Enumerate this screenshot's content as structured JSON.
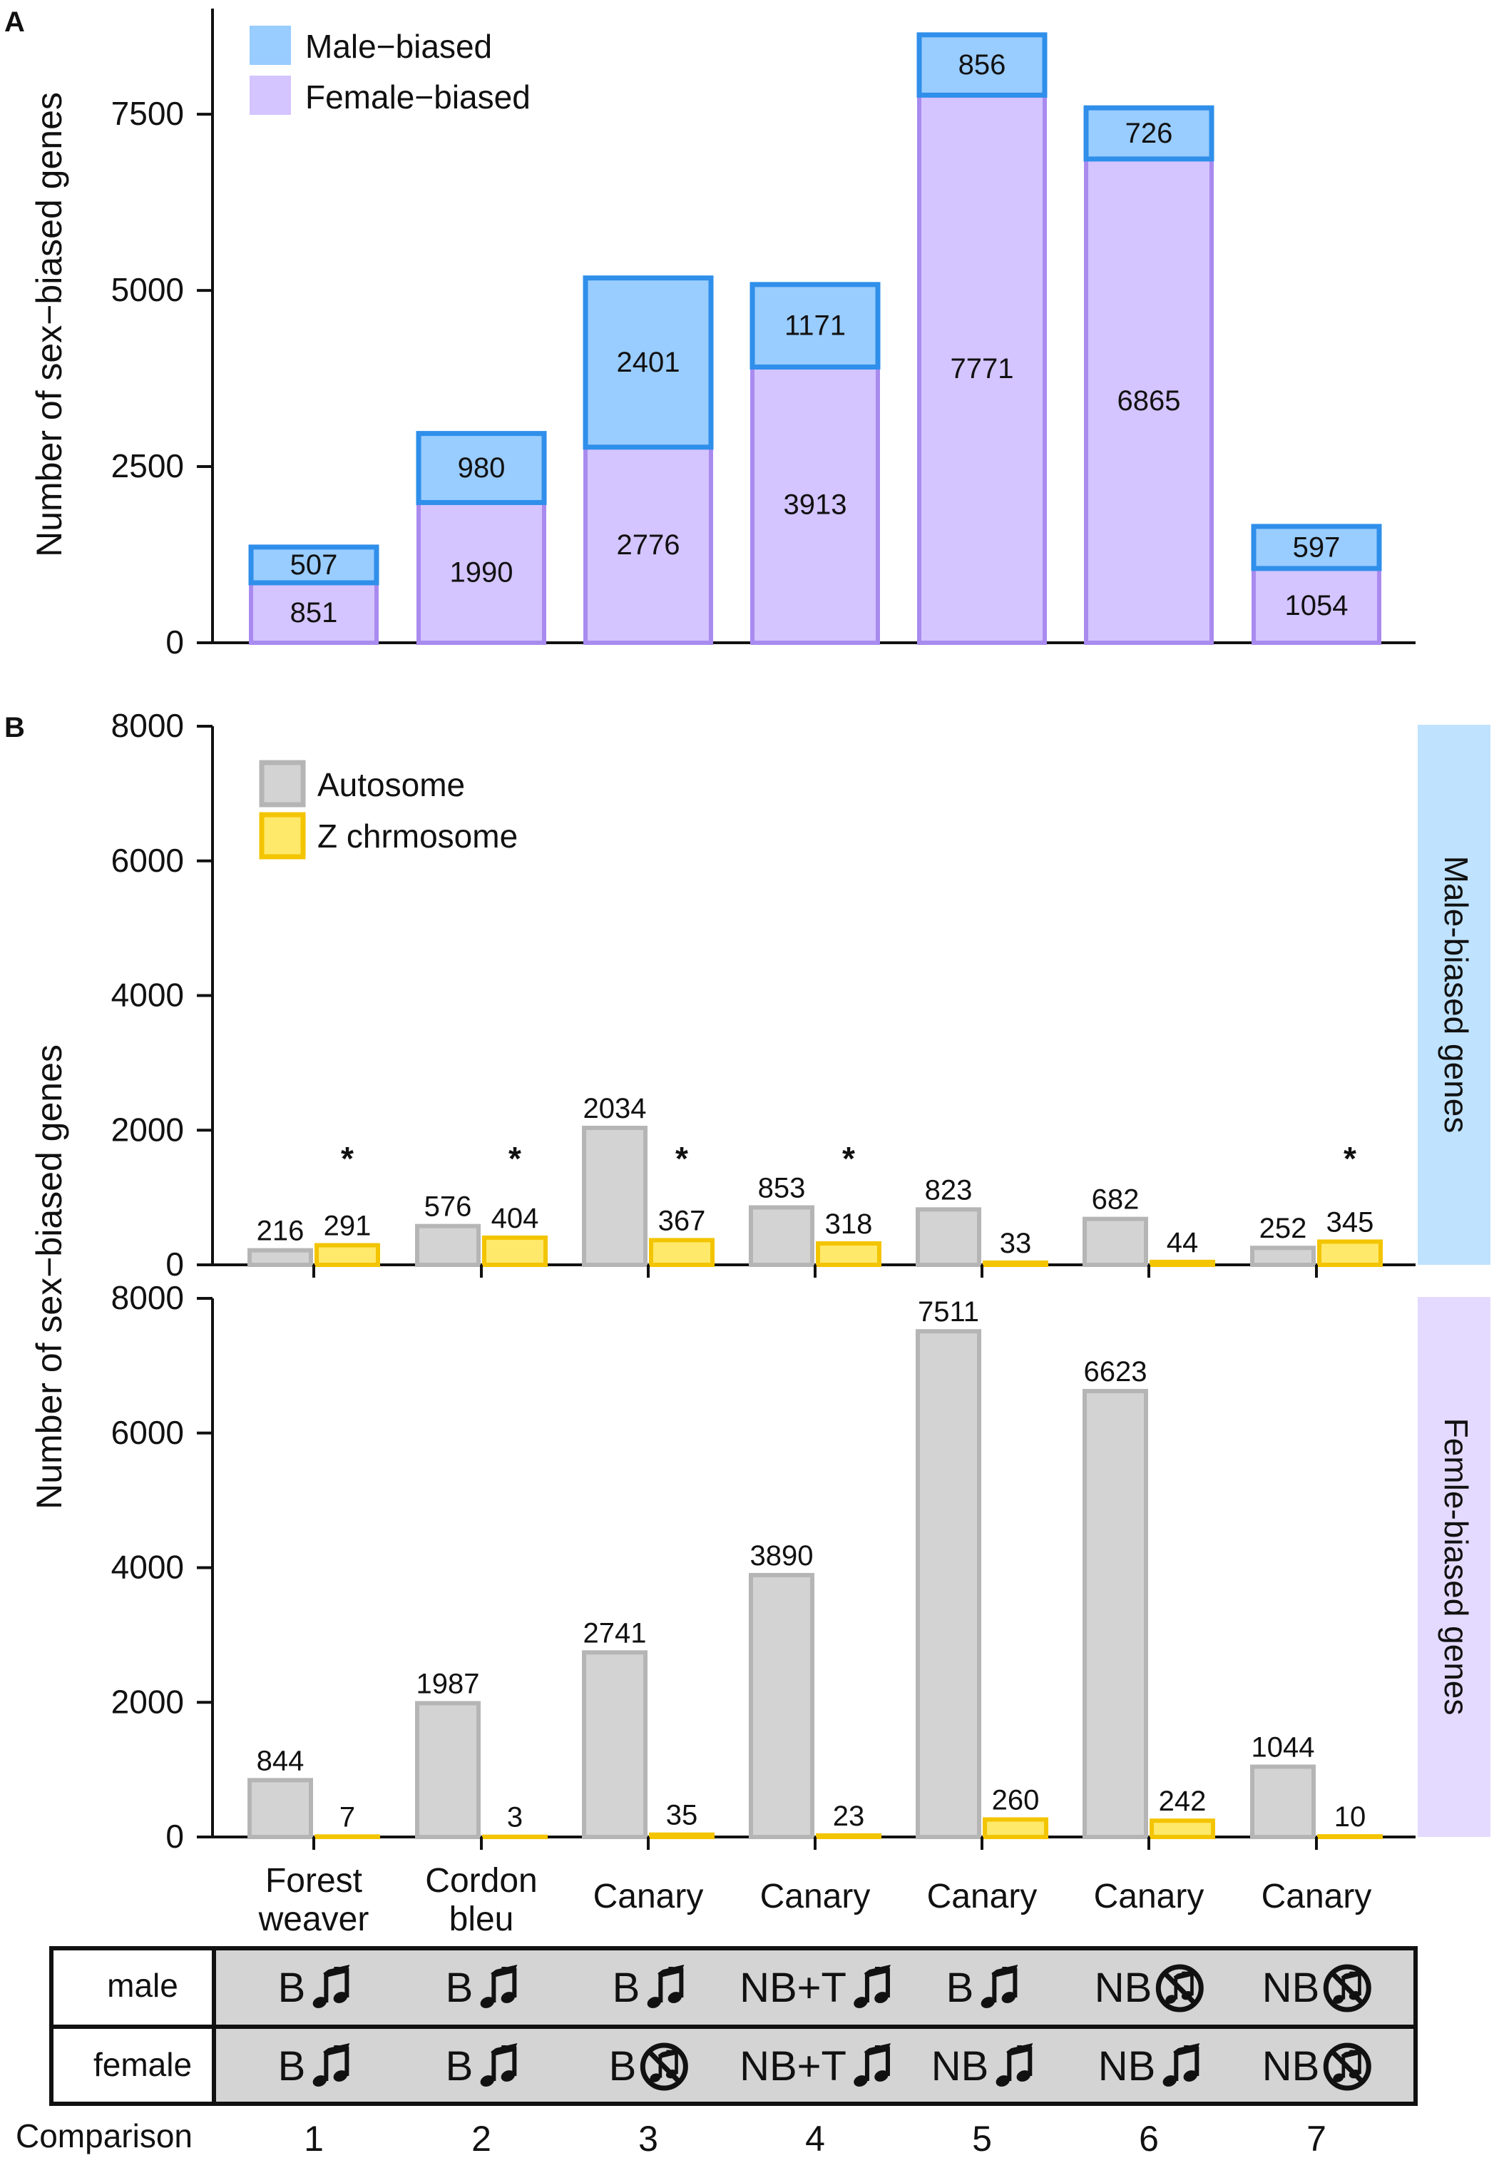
{
  "colors": {
    "male_fill": "#99CCFF",
    "male_stroke": "#2F8FEA",
    "female_fill": "#D4C4FF",
    "female_stroke": "#A98BEF",
    "auto_fill": "#D3D3D3",
    "auto_stroke": "#B5B5B5",
    "z_fill": "#FFE96A",
    "z_stroke": "#F3C400",
    "strip_male": "#BFE2FF",
    "strip_female": "#E4DAFF",
    "table_fill": "#D4D4D4"
  },
  "chart_data": [
    {
      "panel": "A",
      "type": "bar",
      "stacked": true,
      "ylabel": "Number of sex−biased genes",
      "ylim": [
        0,
        9000
      ],
      "yticks": [
        0,
        2500,
        5000,
        7500
      ],
      "categories": [
        "1",
        "2",
        "3",
        "4",
        "5",
        "6",
        "7"
      ],
      "series": [
        {
          "name": "Female−biased",
          "values": [
            851,
            1990,
            2776,
            3913,
            7771,
            6865,
            1054
          ]
        },
        {
          "name": "Male−biased",
          "values": [
            507,
            980,
            2401,
            1171,
            856,
            726,
            597
          ]
        }
      ],
      "legend": [
        "Male−biased",
        "Female−biased"
      ]
    },
    {
      "panel": "B",
      "type": "bar",
      "ylabel": "Number of sex−biased genes",
      "ylim": [
        0,
        8000
      ],
      "yticks": [
        0,
        2000,
        4000,
        6000,
        8000
      ],
      "legend": [
        "Autosome",
        "Z chrmosome"
      ],
      "categories": [
        "Forest weaver",
        "Cordon bleu",
        "Canary",
        "Canary",
        "Canary",
        "Canary",
        "Canary"
      ],
      "facets": [
        {
          "strip": "Male-biased genes",
          "series": [
            {
              "name": "Autosome",
              "values": [
                216,
                576,
                2034,
                853,
                823,
                682,
                252
              ]
            },
            {
              "name": "Z chrmosome",
              "values": [
                291,
                404,
                367,
                318,
                33,
                44,
                345
              ]
            }
          ],
          "significant": [
            true,
            true,
            true,
            true,
            false,
            false,
            true
          ]
        },
        {
          "strip": "Femle-biased genes",
          "series": [
            {
              "name": "Autosome",
              "values": [
                844,
                1987,
                2741,
                3890,
                7511,
                6623,
                1044
              ]
            },
            {
              "name": "Z chrmosome",
              "values": [
                7,
                3,
                35,
                23,
                260,
                242,
                10
              ]
            }
          ]
        }
      ]
    }
  ],
  "panel_labels": {
    "a": "A",
    "b": "B"
  },
  "species": [
    {
      "line1": "Forest",
      "line2": "weaver"
    },
    {
      "line1": "Cordon",
      "line2": "bleu"
    },
    {
      "line1": "Canary"
    },
    {
      "line1": "Canary"
    },
    {
      "line1": "Canary"
    },
    {
      "line1": "Canary"
    },
    {
      "line1": "Canary"
    }
  ],
  "significance_mark": "*",
  "table": {
    "row_labels": [
      "male",
      "female"
    ],
    "male": [
      {
        "label": "B",
        "song": true
      },
      {
        "label": "B",
        "song": true
      },
      {
        "label": "B",
        "song": true
      },
      {
        "label": "NB+T",
        "song": true
      },
      {
        "label": "B",
        "song": true
      },
      {
        "label": "NB",
        "song": false
      },
      {
        "label": "NB",
        "song": false
      }
    ],
    "female": [
      {
        "label": "B",
        "song": true
      },
      {
        "label": "B",
        "song": true
      },
      {
        "label": "B",
        "song": false
      },
      {
        "label": "NB+T",
        "song": true
      },
      {
        "label": "NB",
        "song": true
      },
      {
        "label": "NB",
        "song": true
      },
      {
        "label": "NB",
        "song": false
      }
    ],
    "comparison_label": "Comparison",
    "comparison_numbers": [
      "1",
      "2",
      "3",
      "4",
      "5",
      "6",
      "7"
    ]
  }
}
